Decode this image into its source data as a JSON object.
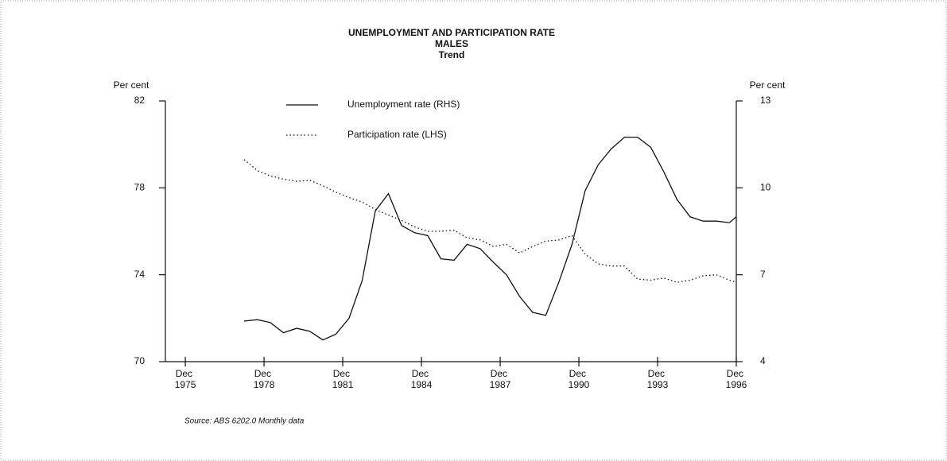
{
  "chart_data": {
    "type": "line",
    "title": "UNEMPLOYMENT AND PARTICIPATION RATE",
    "subtitle": "MALES",
    "subtitle2": "Trend",
    "ylabel": "Per cent",
    "y2label": "Per cent",
    "source": "Source: ABS 6202.0 Monthly data",
    "x": [
      1978.2,
      1978.7,
      1979.2,
      1979.7,
      1980.2,
      1980.7,
      1981.2,
      1981.7,
      1982.2,
      1982.7,
      1983.2,
      1983.7,
      1984.2,
      1984.7,
      1985.2,
      1985.7,
      1986.2,
      1986.7,
      1987.2,
      1987.7,
      1988.2,
      1988.7,
      1989.2,
      1989.7,
      1990.2,
      1990.7,
      1991.2,
      1991.7,
      1992.2,
      1992.7,
      1993.2,
      1993.7,
      1994.2,
      1994.7,
      1995.2,
      1995.7,
      1996.2,
      1996.7,
      1996.96
    ],
    "series": [
      {
        "name": "Unemployment rate (RHS)",
        "color": "#111111",
        "style": "solid",
        "axis": "y2",
        "values": [
          5.4,
          5.45,
          5.35,
          5.0,
          5.15,
          5.05,
          4.75,
          4.95,
          5.5,
          6.8,
          9.2,
          9.8,
          8.7,
          8.45,
          8.35,
          7.55,
          7.5,
          8.05,
          7.9,
          7.43,
          7.0,
          6.25,
          5.7,
          5.6,
          6.75,
          8.05,
          9.9,
          10.8,
          11.35,
          11.75,
          11.75,
          11.4,
          10.55,
          9.6,
          9.0,
          8.85,
          8.85,
          8.8,
          9.0
        ]
      },
      {
        "name": "Participation rate (LHS)",
        "color": "#111111",
        "style": "dotted",
        "values": [
          79.3,
          78.8,
          78.55,
          78.4,
          78.3,
          78.35,
          78.1,
          77.8,
          77.55,
          77.35,
          77.0,
          76.75,
          76.5,
          76.2,
          76.0,
          76.0,
          76.05,
          75.7,
          75.6,
          75.3,
          75.4,
          75.0,
          75.3,
          75.55,
          75.6,
          75.8,
          74.95,
          74.5,
          74.4,
          74.4,
          73.8,
          73.75,
          73.85,
          73.65,
          73.75,
          73.95,
          74.0,
          73.75,
          73.65
        ]
      }
    ],
    "xlim": [
      1975.2,
      1996.96
    ],
    "xticks": [
      {
        "value": 1975.96,
        "label": "Dec 1975"
      },
      {
        "value": 1978.96,
        "label": "Dec 1978"
      },
      {
        "value": 1981.96,
        "label": "Dec 1981"
      },
      {
        "value": 1984.96,
        "label": "Dec 1984"
      },
      {
        "value": 1987.96,
        "label": "Dec 1987"
      },
      {
        "value": 1990.96,
        "label": "Dec 1990"
      },
      {
        "value": 1993.96,
        "label": "Dec 1993"
      },
      {
        "value": 1996.96,
        "label": "Dec 1996"
      }
    ],
    "ylim": [
      70,
      82
    ],
    "yticks": [
      70,
      74,
      78,
      82
    ],
    "y2lim": [
      4,
      13
    ],
    "y2ticks": [
      4,
      7,
      10,
      13
    ],
    "grid": false,
    "legend": "top"
  }
}
